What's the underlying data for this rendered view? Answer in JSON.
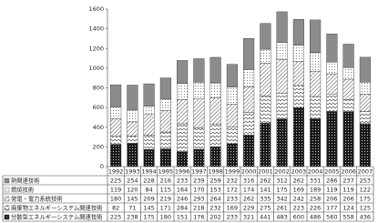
{
  "chart_data": {
    "type": "stacked-bar",
    "categories": [
      "1992",
      "1993",
      "1994",
      "1995",
      "1996",
      "1997",
      "1998",
      "1999",
      "2000",
      "2001",
      "2002",
      "2003",
      "2004",
      "2005",
      "2006",
      "2007"
    ],
    "series": [
      {
        "name": "熱関連技術",
        "color": "#8c8c8c",
        "values": [
          225,
          254,
          228,
          216,
          233,
          239,
          259,
          232,
          316,
          262,
          312,
          262,
          331,
          286,
          237,
          253
        ]
      },
      {
        "name": "燃焼技術",
        "color": "#ffffff",
        "values": [
          119,
          120,
          84,
          115,
          164,
          170,
          153,
          172,
          174,
          141,
          175,
          169,
          189,
          119,
          119,
          122
        ]
      },
      {
        "name": "発電・電力系統技術",
        "color": "#ffffff",
        "values": [
          180,
          145,
          209,
          219,
          246,
          293,
          264,
          233,
          262,
          335,
          342,
          242,
          258,
          206,
          206,
          175
        ]
      },
      {
        "name": "廃棄物エネルギーシステム関連技術",
        "color": "#ffffff",
        "values": [
          82,
          71,
          145,
          171,
          284,
          218,
          232,
          169,
          229,
          275,
          261,
          223,
          226,
          177,
          124,
          125
        ]
      },
      {
        "name": "分散型エネルギーシステム関連技術",
        "color": "#1a1a1a",
        "values": [
          225,
          238,
          175,
          180,
          151,
          176,
          202,
          233,
          321,
          441,
          483,
          600,
          486,
          560,
          558,
          436
        ]
      }
    ],
    "ylim": [
      0,
      1600
    ],
    "yticks": [
      0,
      200,
      400,
      600,
      800,
      1000,
      1200,
      1400,
      1600
    ],
    "grid": false
  }
}
